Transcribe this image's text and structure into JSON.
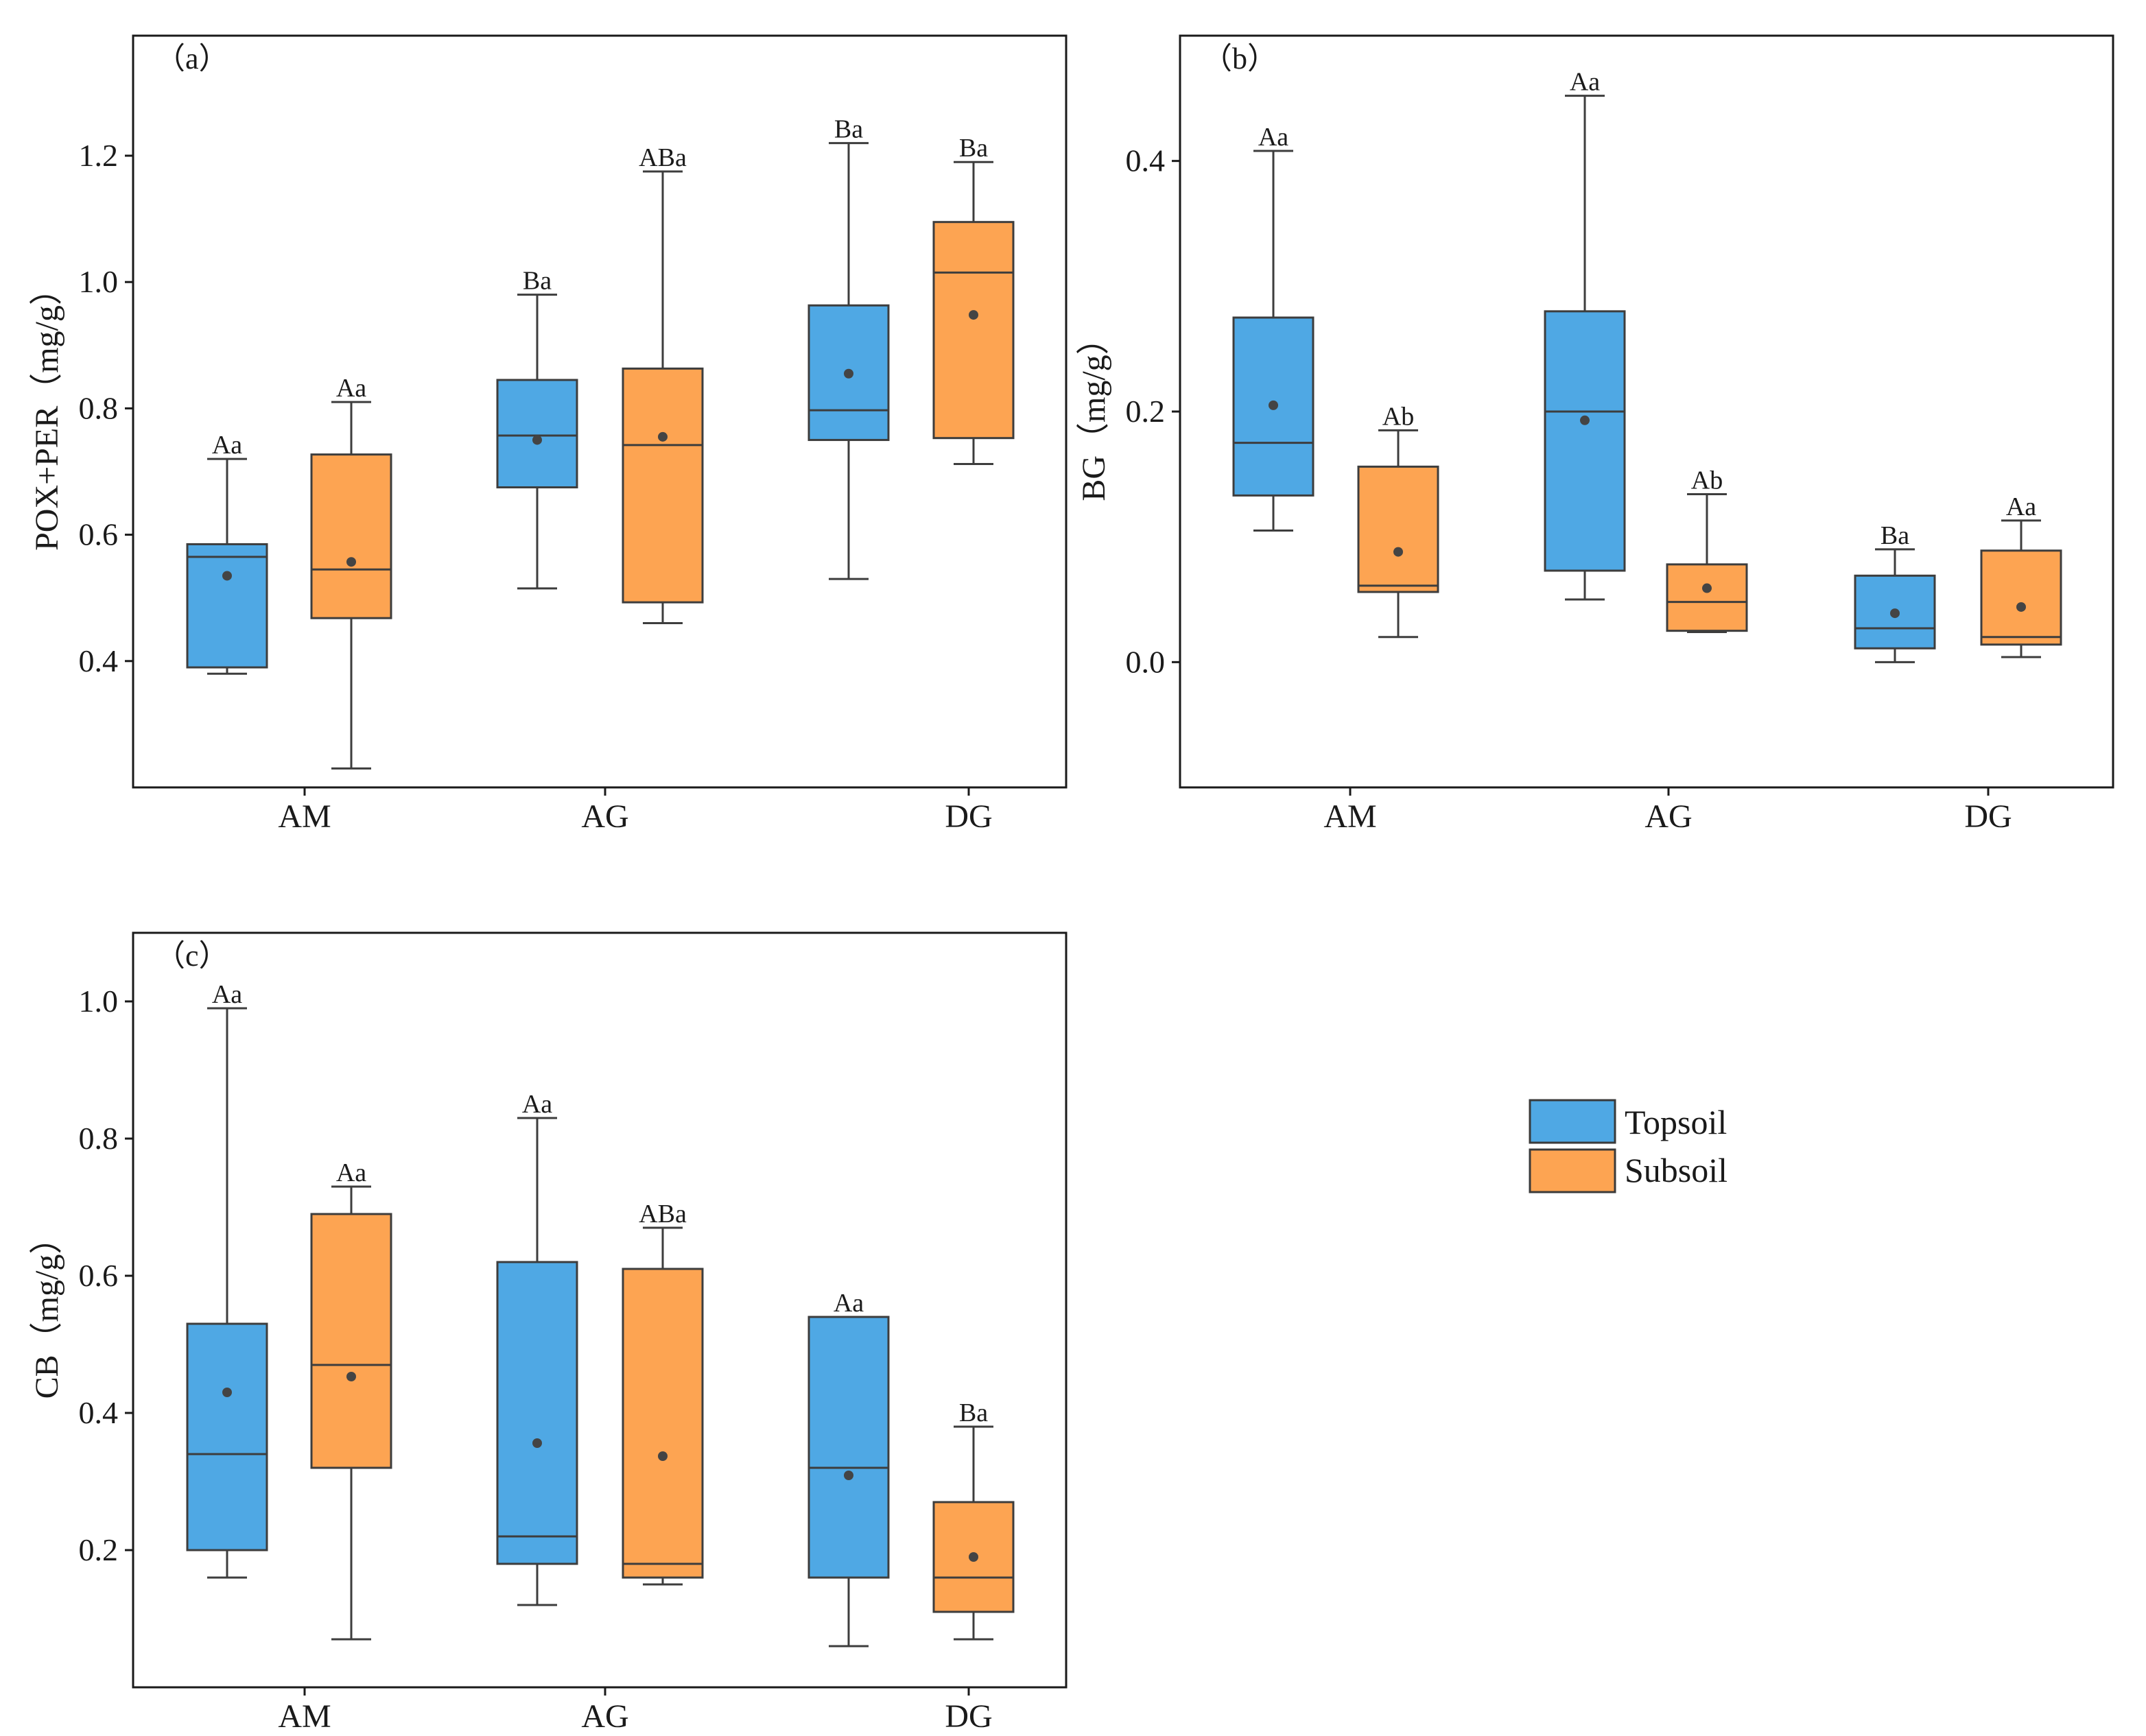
{
  "legend": {
    "items": [
      {
        "label": "Topsoil",
        "color": "#4FA8E4"
      },
      {
        "label": "Subsoil",
        "color": "#FDA452"
      }
    ]
  },
  "chart_data": [
    {
      "type": "box",
      "panel_label": "（a）",
      "title": "",
      "xlabel": "",
      "ylabel": "POX+PER（mg/g）",
      "ylim": [
        0.2,
        1.39
      ],
      "yticks": [
        0.4,
        0.6,
        0.8,
        1.0,
        1.2
      ],
      "ytick_labels": [
        "0.4",
        "0.6",
        "0.8",
        "1.0",
        "1.2"
      ],
      "categories": [
        "AM",
        "AG",
        "DG"
      ],
      "grid": false,
      "series": [
        {
          "name": "Topsoil",
          "boxes": [
            {
              "min": 0.38,
              "q1": 0.39,
              "median": 0.565,
              "q3": 0.585,
              "max": 0.72,
              "mean": 0.535,
              "label": "Aa"
            },
            {
              "min": 0.515,
              "q1": 0.675,
              "median": 0.757,
              "q3": 0.845,
              "max": 0.98,
              "mean": 0.75,
              "label": "Ba"
            },
            {
              "min": 0.53,
              "q1": 0.75,
              "median": 0.797,
              "q3": 0.963,
              "max": 1.22,
              "mean": 0.855,
              "label": "Ba"
            }
          ]
        },
        {
          "name": "Subsoil",
          "boxes": [
            {
              "min": 0.23,
              "q1": 0.468,
              "median": 0.545,
              "q3": 0.727,
              "max": 0.81,
              "mean": 0.557,
              "label": "Aa"
            },
            {
              "min": 0.46,
              "q1": 0.493,
              "median": 0.742,
              "q3": 0.863,
              "max": 1.175,
              "mean": 0.755,
              "label": "ABa"
            },
            {
              "min": 0.712,
              "q1": 0.753,
              "median": 1.015,
              "q3": 1.095,
              "max": 1.19,
              "mean": 0.948,
              "label": "Ba"
            }
          ]
        }
      ]
    },
    {
      "type": "box",
      "panel_label": "（b）",
      "title": "",
      "xlabel": "",
      "ylabel": "BG（mg/g）",
      "ylim": [
        -0.1,
        0.5
      ],
      "yticks": [
        0.0,
        0.2,
        0.4
      ],
      "ytick_labels": [
        "0.0",
        "0.2",
        "0.4"
      ],
      "categories": [
        "AM",
        "AG",
        "DG"
      ],
      "grid": false,
      "series": [
        {
          "name": "Topsoil",
          "boxes": [
            {
              "min": 0.105,
              "q1": 0.133,
              "median": 0.175,
              "q3": 0.275,
              "max": 0.408,
              "mean": 0.205,
              "label": "Aa"
            },
            {
              "min": 0.05,
              "q1": 0.073,
              "median": 0.2,
              "q3": 0.28,
              "max": 0.452,
              "mean": 0.193,
              "label": "Aa"
            },
            {
              "min": 0.0,
              "q1": 0.011,
              "median": 0.027,
              "q3": 0.069,
              "max": 0.09,
              "mean": 0.039,
              "label": "Ba"
            }
          ]
        },
        {
          "name": "Subsoil",
          "boxes": [
            {
              "min": 0.02,
              "q1": 0.056,
              "median": 0.061,
              "q3": 0.156,
              "max": 0.185,
              "mean": 0.088,
              "label": "Ab"
            },
            {
              "min": 0.024,
              "q1": 0.025,
              "median": 0.048,
              "q3": 0.078,
              "max": 0.134,
              "mean": 0.059,
              "label": "Ab"
            },
            {
              "min": 0.004,
              "q1": 0.014,
              "median": 0.02,
              "q3": 0.089,
              "max": 0.113,
              "mean": 0.044,
              "label": "Aa"
            }
          ]
        }
      ]
    },
    {
      "type": "box",
      "panel_label": "（c）",
      "title": "",
      "xlabel": "",
      "ylabel": "CB（mg/g）",
      "ylim": [
        0.0,
        1.1
      ],
      "yticks": [
        0.2,
        0.4,
        0.6,
        0.8,
        1.0
      ],
      "ytick_labels": [
        "0.2",
        "0.4",
        "0.6",
        "0.8",
        "1.0"
      ],
      "categories": [
        "AM",
        "AG",
        "DG"
      ],
      "grid": false,
      "series": [
        {
          "name": "Topsoil",
          "boxes": [
            {
              "min": 0.16,
              "q1": 0.2,
              "median": 0.34,
              "q3": 0.53,
              "max": 0.99,
              "mean": 0.43,
              "label": "Aa"
            },
            {
              "min": 0.12,
              "q1": 0.18,
              "median": 0.22,
              "q3": 0.62,
              "max": 0.83,
              "mean": 0.356,
              "label": "Aa"
            },
            {
              "min": 0.06,
              "q1": 0.16,
              "median": 0.32,
              "q3": 0.54,
              "max": 0.54,
              "mean": 0.309,
              "label": "Aa"
            }
          ]
        },
        {
          "name": "Subsoil",
          "boxes": [
            {
              "min": 0.07,
              "q1": 0.32,
              "median": 0.47,
              "q3": 0.69,
              "max": 0.73,
              "mean": 0.453,
              "label": "Aa"
            },
            {
              "min": 0.15,
              "q1": 0.16,
              "median": 0.18,
              "q3": 0.61,
              "max": 0.67,
              "mean": 0.337,
              "label": "ABa"
            },
            {
              "min": 0.07,
              "q1": 0.11,
              "median": 0.16,
              "q3": 0.27,
              "max": 0.38,
              "mean": 0.19,
              "label": "Ba"
            }
          ]
        }
      ]
    }
  ]
}
